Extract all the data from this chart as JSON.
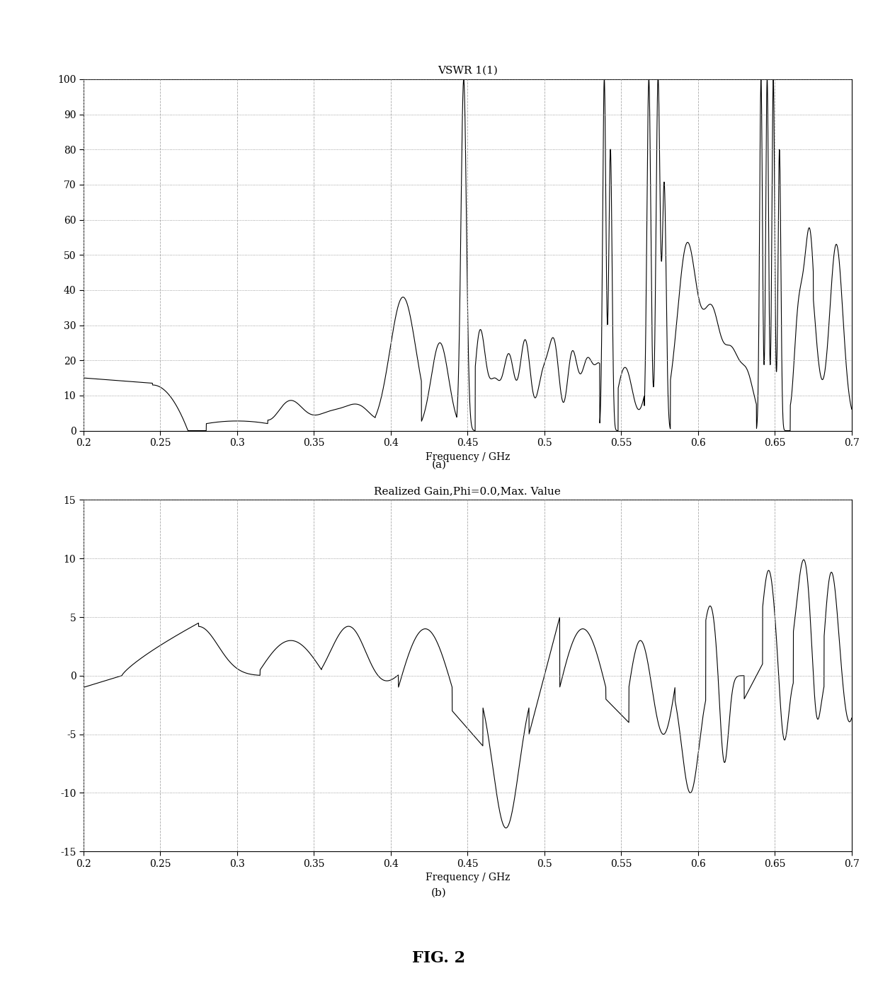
{
  "fig_title": "FIG. 2",
  "plot_a_title": "VSWR 1(1)",
  "plot_b_title": "Realized Gain,Phi=0.0,Max. Value",
  "xlabel": "Frequency / GHz",
  "label_a": "(a)",
  "label_b": "(b)",
  "xlim": [
    0.2,
    0.7
  ],
  "xticks": [
    0.2,
    0.25,
    0.3,
    0.35,
    0.4,
    0.45,
    0.5,
    0.55,
    0.6,
    0.65,
    0.7
  ],
  "plot_a_ylim": [
    0,
    100
  ],
  "plot_a_yticks": [
    0,
    10,
    20,
    30,
    40,
    50,
    60,
    70,
    80,
    90,
    100
  ],
  "plot_b_ylim": [
    -15,
    15
  ],
  "plot_b_yticks": [
    -15,
    -10,
    -5,
    0,
    5,
    10,
    15
  ],
  "line_color": "#000000",
  "background_color": "#ffffff"
}
